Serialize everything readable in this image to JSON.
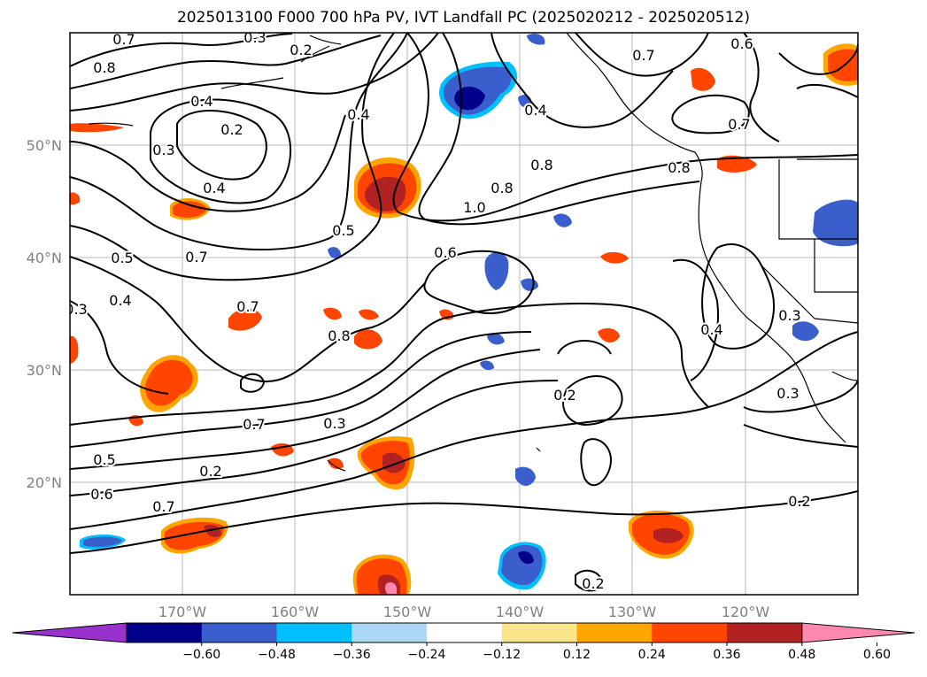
{
  "title": "2025013100 F000 700 hPa PV, IVT Landfall PC (2025020212 - 2025020512)",
  "map": {
    "lon_ticks": [
      "170°W",
      "160°W",
      "150°W",
      "140°W",
      "130°W",
      "120°W"
    ],
    "lat_ticks": [
      "50°N",
      "40°N",
      "30°N",
      "20°N"
    ],
    "contour_labels": [
      "0.7",
      "0.8",
      "0.3",
      "0.2",
      "0.4",
      "0.2",
      "0.3",
      "0.4",
      "0.5",
      "0.7",
      "0.5",
      "0.4",
      "0.3",
      "0.7",
      "0.8",
      "0.6",
      "0.4",
      "0.3",
      "0.2",
      "0.7",
      "0.5",
      "0.6",
      "0.7",
      "0.8",
      "1.0",
      "0.4",
      "0.8",
      "0.7",
      "0.6",
      "0.8",
      "0.7",
      "0.2",
      "0.3",
      "0.2",
      "0.2",
      "0.4",
      "0.3"
    ]
  },
  "colorbar": {
    "labels": [
      "−0.60",
      "−0.48",
      "−0.36",
      "−0.24",
      "−0.12",
      "0.12",
      "0.24",
      "0.36",
      "0.48",
      "0.60"
    ],
    "colors": [
      "#9932cc",
      "#00008b",
      "#3a5fcd",
      "#00bfff",
      "#add8f5",
      "#ffffff",
      "#fbe58a",
      "#ffa500",
      "#ff4500",
      "#b22222",
      "#ff88b0"
    ]
  }
}
